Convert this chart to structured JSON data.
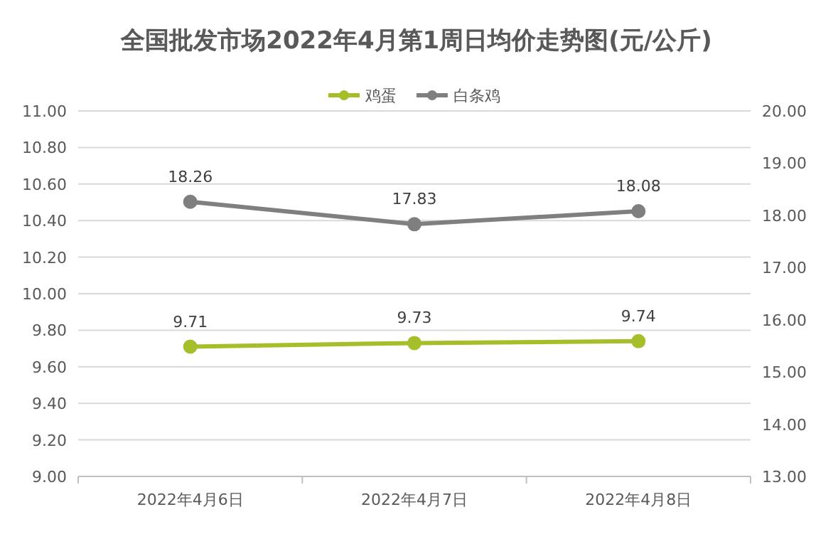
{
  "chart_data": {
    "type": "line",
    "title": "全国批发市场2022年4月第1周日均价走势图(元/公斤)",
    "categories": [
      "2022年4月6日",
      "2022年4月7日",
      "2022年4月8日"
    ],
    "series": [
      {
        "name": "鸡蛋",
        "color": "#a5bf2b",
        "values": [
          9.71,
          9.73,
          9.74
        ]
      },
      {
        "name": "白条鸡",
        "color": "#7f7f7f",
        "values": [
          18.26,
          17.83,
          18.08
        ],
        "axis": "y2"
      }
    ],
    "ylim": [
      9,
      11
    ],
    "yticks": [
      {
        "value": 9,
        "label": "9.00"
      },
      {
        "value": 9.2,
        "label": "9.20"
      },
      {
        "value": 9.4,
        "label": "9.40"
      },
      {
        "value": 9.6,
        "label": "9.60"
      },
      {
        "value": 9.8,
        "label": "9.80"
      },
      {
        "value": 10,
        "label": "10.00"
      },
      {
        "value": 10.2,
        "label": "10.20"
      },
      {
        "value": 10.4,
        "label": "10.40"
      },
      {
        "value": 10.6,
        "label": "10.60"
      },
      {
        "value": 10.8,
        "label": "10.80"
      },
      {
        "value": 11,
        "label": "11.00"
      }
    ],
    "y2lim": [
      13,
      20
    ],
    "y2ticks": [
      {
        "value": 13,
        "label": "13.00"
      },
      {
        "value": 14,
        "label": "14.00"
      },
      {
        "value": 15,
        "label": "15.00"
      },
      {
        "value": 16,
        "label": "16.00"
      },
      {
        "value": 17,
        "label": "17.00"
      },
      {
        "value": 18,
        "label": "18.00"
      },
      {
        "value": 19,
        "label": "19.00"
      },
      {
        "value": 20,
        "label": "20.00"
      }
    ],
    "grid": "y",
    "legend": "top",
    "marker": "circle",
    "line_style": "solid",
    "data_labels": true
  }
}
